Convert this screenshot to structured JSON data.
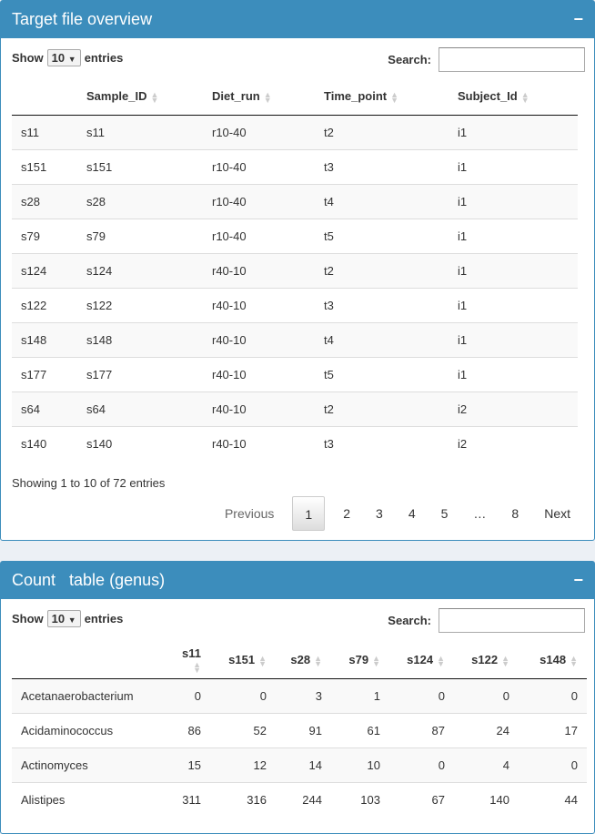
{
  "panel1": {
    "title": "Target file overview",
    "collapse": "−",
    "show": "Show",
    "length": "10",
    "entries": "entries",
    "search_label": "Search:",
    "search_value": "",
    "columns": [
      "",
      "Sample_ID",
      "Diet_run",
      "Time_point",
      "Subject_Id"
    ],
    "rows": [
      [
        "s11",
        "s11",
        "r10-40",
        "t2",
        "i1"
      ],
      [
        "s151",
        "s151",
        "r10-40",
        "t3",
        "i1"
      ],
      [
        "s28",
        "s28",
        "r10-40",
        "t4",
        "i1"
      ],
      [
        "s79",
        "s79",
        "r10-40",
        "t5",
        "i1"
      ],
      [
        "s124",
        "s124",
        "r40-10",
        "t2",
        "i1"
      ],
      [
        "s122",
        "s122",
        "r40-10",
        "t3",
        "i1"
      ],
      [
        "s148",
        "s148",
        "r40-10",
        "t4",
        "i1"
      ],
      [
        "s177",
        "s177",
        "r40-10",
        "t5",
        "i1"
      ],
      [
        "s64",
        "s64",
        "r40-10",
        "t2",
        "i2"
      ],
      [
        "s140",
        "s140",
        "r40-10",
        "t3",
        "i2"
      ]
    ],
    "info": "Showing 1 to 10 of 72 entries",
    "pagination": {
      "previous": "Previous",
      "pages": [
        "1",
        "2",
        "3",
        "4",
        "5",
        "…",
        "8"
      ],
      "next": "Next",
      "current": "1"
    }
  },
  "panel2": {
    "title": "Count   table (genus)",
    "collapse": "−",
    "show": "Show",
    "length": "10",
    "entries": "entries",
    "search_label": "Search:",
    "search_value": "",
    "columns": [
      "",
      "s11",
      "s151",
      "s28",
      "s79",
      "s124",
      "s122",
      "s148"
    ],
    "rows": [
      [
        "Acetanaerobacterium",
        "0",
        "0",
        "3",
        "1",
        "0",
        "0",
        "0"
      ],
      [
        "Acidaminococcus",
        "86",
        "52",
        "91",
        "61",
        "87",
        "24",
        "17"
      ],
      [
        "Actinomyces",
        "15",
        "12",
        "14",
        "10",
        "0",
        "4",
        "0"
      ],
      [
        "Alistipes",
        "311",
        "316",
        "244",
        "103",
        "67",
        "140",
        "44"
      ]
    ]
  },
  "colors": {
    "header": "#3c8dbc",
    "background": "#ecf0f5"
  }
}
